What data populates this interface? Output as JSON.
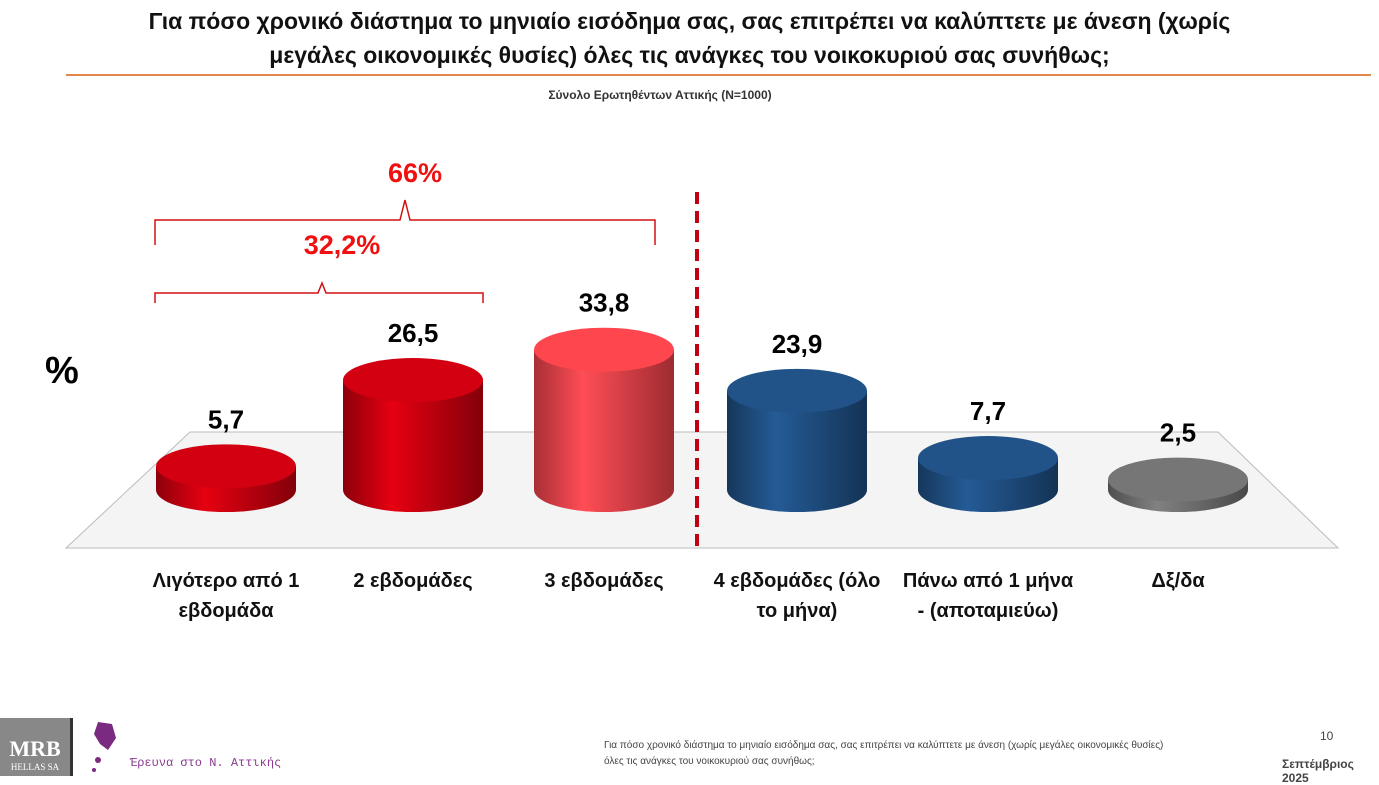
{
  "title": "Για πόσο χρονικό διάστημα το μηνιαίο εισόδημα σας, σας επιτρέπει να καλύπτετε με άνεση (χωρίς μεγάλες οικονομικές θυσίες) όλες τις ανάγκες του νοικοκυριού σας συνήθως;",
  "subtitle": "Σύνολο Ερωτηθέντων Αττικής (N=1000)",
  "chart_data": {
    "type": "bar",
    "ylabel": "%",
    "categories": [
      "Λιγότερο από 1 εβδομάδα",
      "2 εβδομάδες",
      "3 εβδομάδες",
      "4 εβδομάδες (όλο το μήνα)",
      "Πάνω από 1 μήνα - (αποταμιεύω)",
      "Δξ/δα"
    ],
    "values": [
      5.7,
      26.5,
      33.8,
      23.9,
      7.7,
      2.5
    ],
    "value_labels": [
      "5,7",
      "26,5",
      "33,8",
      "23,9",
      "7,7",
      "2,5"
    ],
    "colors": [
      "#c8000f",
      "#c8000f",
      "#f2434b",
      "#1f4f82",
      "#1f4f82",
      "#707070"
    ],
    "annotations": [
      {
        "label": "32,2%",
        "spans": [
          "Λιγότερο από 1 εβδομάδα",
          "2 εβδομάδες"
        ]
      },
      {
        "label": "66%",
        "spans": [
          "Λιγότερο από 1 εβδομάδα",
          "3 εβδομάδες"
        ]
      }
    ],
    "separator_after": "3 εβδομάδες"
  },
  "footer": {
    "logo": "MRB HELLAS SA",
    "survey": "Έρευνα στο Ν. Αττικής",
    "question": "Για πόσο χρονικό διάστημα το μηνιαίο εισόδημα σας, σας επιτρέπει να καλύπτετε με άνεση (χωρίς μεγάλες οικονομικές θυσίες) όλες τις ανάγκες του νοικοκυριού σας συνήθως;",
    "page": "10",
    "date": "Σεπτέμβριος 2025"
  }
}
